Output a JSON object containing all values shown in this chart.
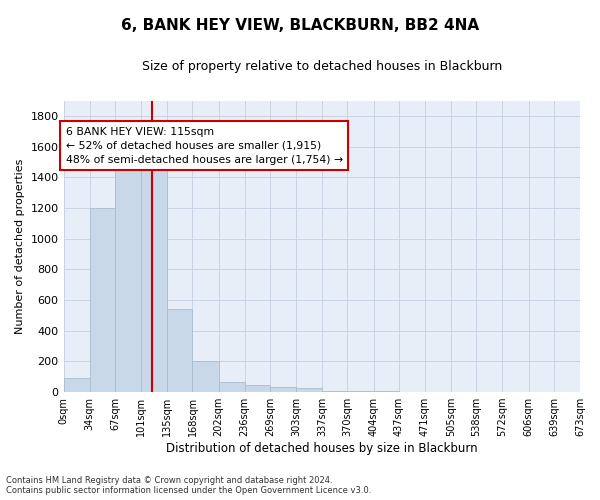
{
  "title": "6, BANK HEY VIEW, BLACKBURN, BB2 4NA",
  "subtitle": "Size of property relative to detached houses in Blackburn",
  "xlabel": "Distribution of detached houses by size in Blackburn",
  "ylabel": "Number of detached properties",
  "footer_line1": "Contains HM Land Registry data © Crown copyright and database right 2024.",
  "footer_line2": "Contains public sector information licensed under the Open Government Licence v3.0.",
  "bar_color": "#c8d8e8",
  "bar_edge_color": "#a8bece",
  "grid_color": "#c8d4e4",
  "vline_color": "#cc0000",
  "background_color": "#e8eef8",
  "bins": [
    0,
    34,
    67,
    101,
    135,
    168,
    202,
    236,
    269,
    303,
    337,
    370,
    404,
    437,
    471,
    505,
    538,
    572,
    606,
    639,
    673
  ],
  "bar_heights": [
    90,
    1200,
    1470,
    1470,
    540,
    205,
    65,
    45,
    35,
    28,
    10,
    8,
    5,
    3,
    2,
    1,
    0,
    0,
    0,
    0
  ],
  "ylim": [
    0,
    1900
  ],
  "yticks": [
    0,
    200,
    400,
    600,
    800,
    1000,
    1200,
    1400,
    1600,
    1800
  ],
  "vline_x": 115,
  "annotation_line1": "6 BANK HEY VIEW: 115sqm",
  "annotation_line2": "← 52% of detached houses are smaller (1,915)",
  "annotation_line3": "48% of semi-detached houses are larger (1,754) →",
  "tick_labels": [
    "0sqm",
    "34sqm",
    "67sqm",
    "101sqm",
    "135sqm",
    "168sqm",
    "202sqm",
    "236sqm",
    "269sqm",
    "303sqm",
    "337sqm",
    "370sqm",
    "404sqm",
    "437sqm",
    "471sqm",
    "505sqm",
    "538sqm",
    "572sqm",
    "606sqm",
    "639sqm",
    "673sqm"
  ]
}
